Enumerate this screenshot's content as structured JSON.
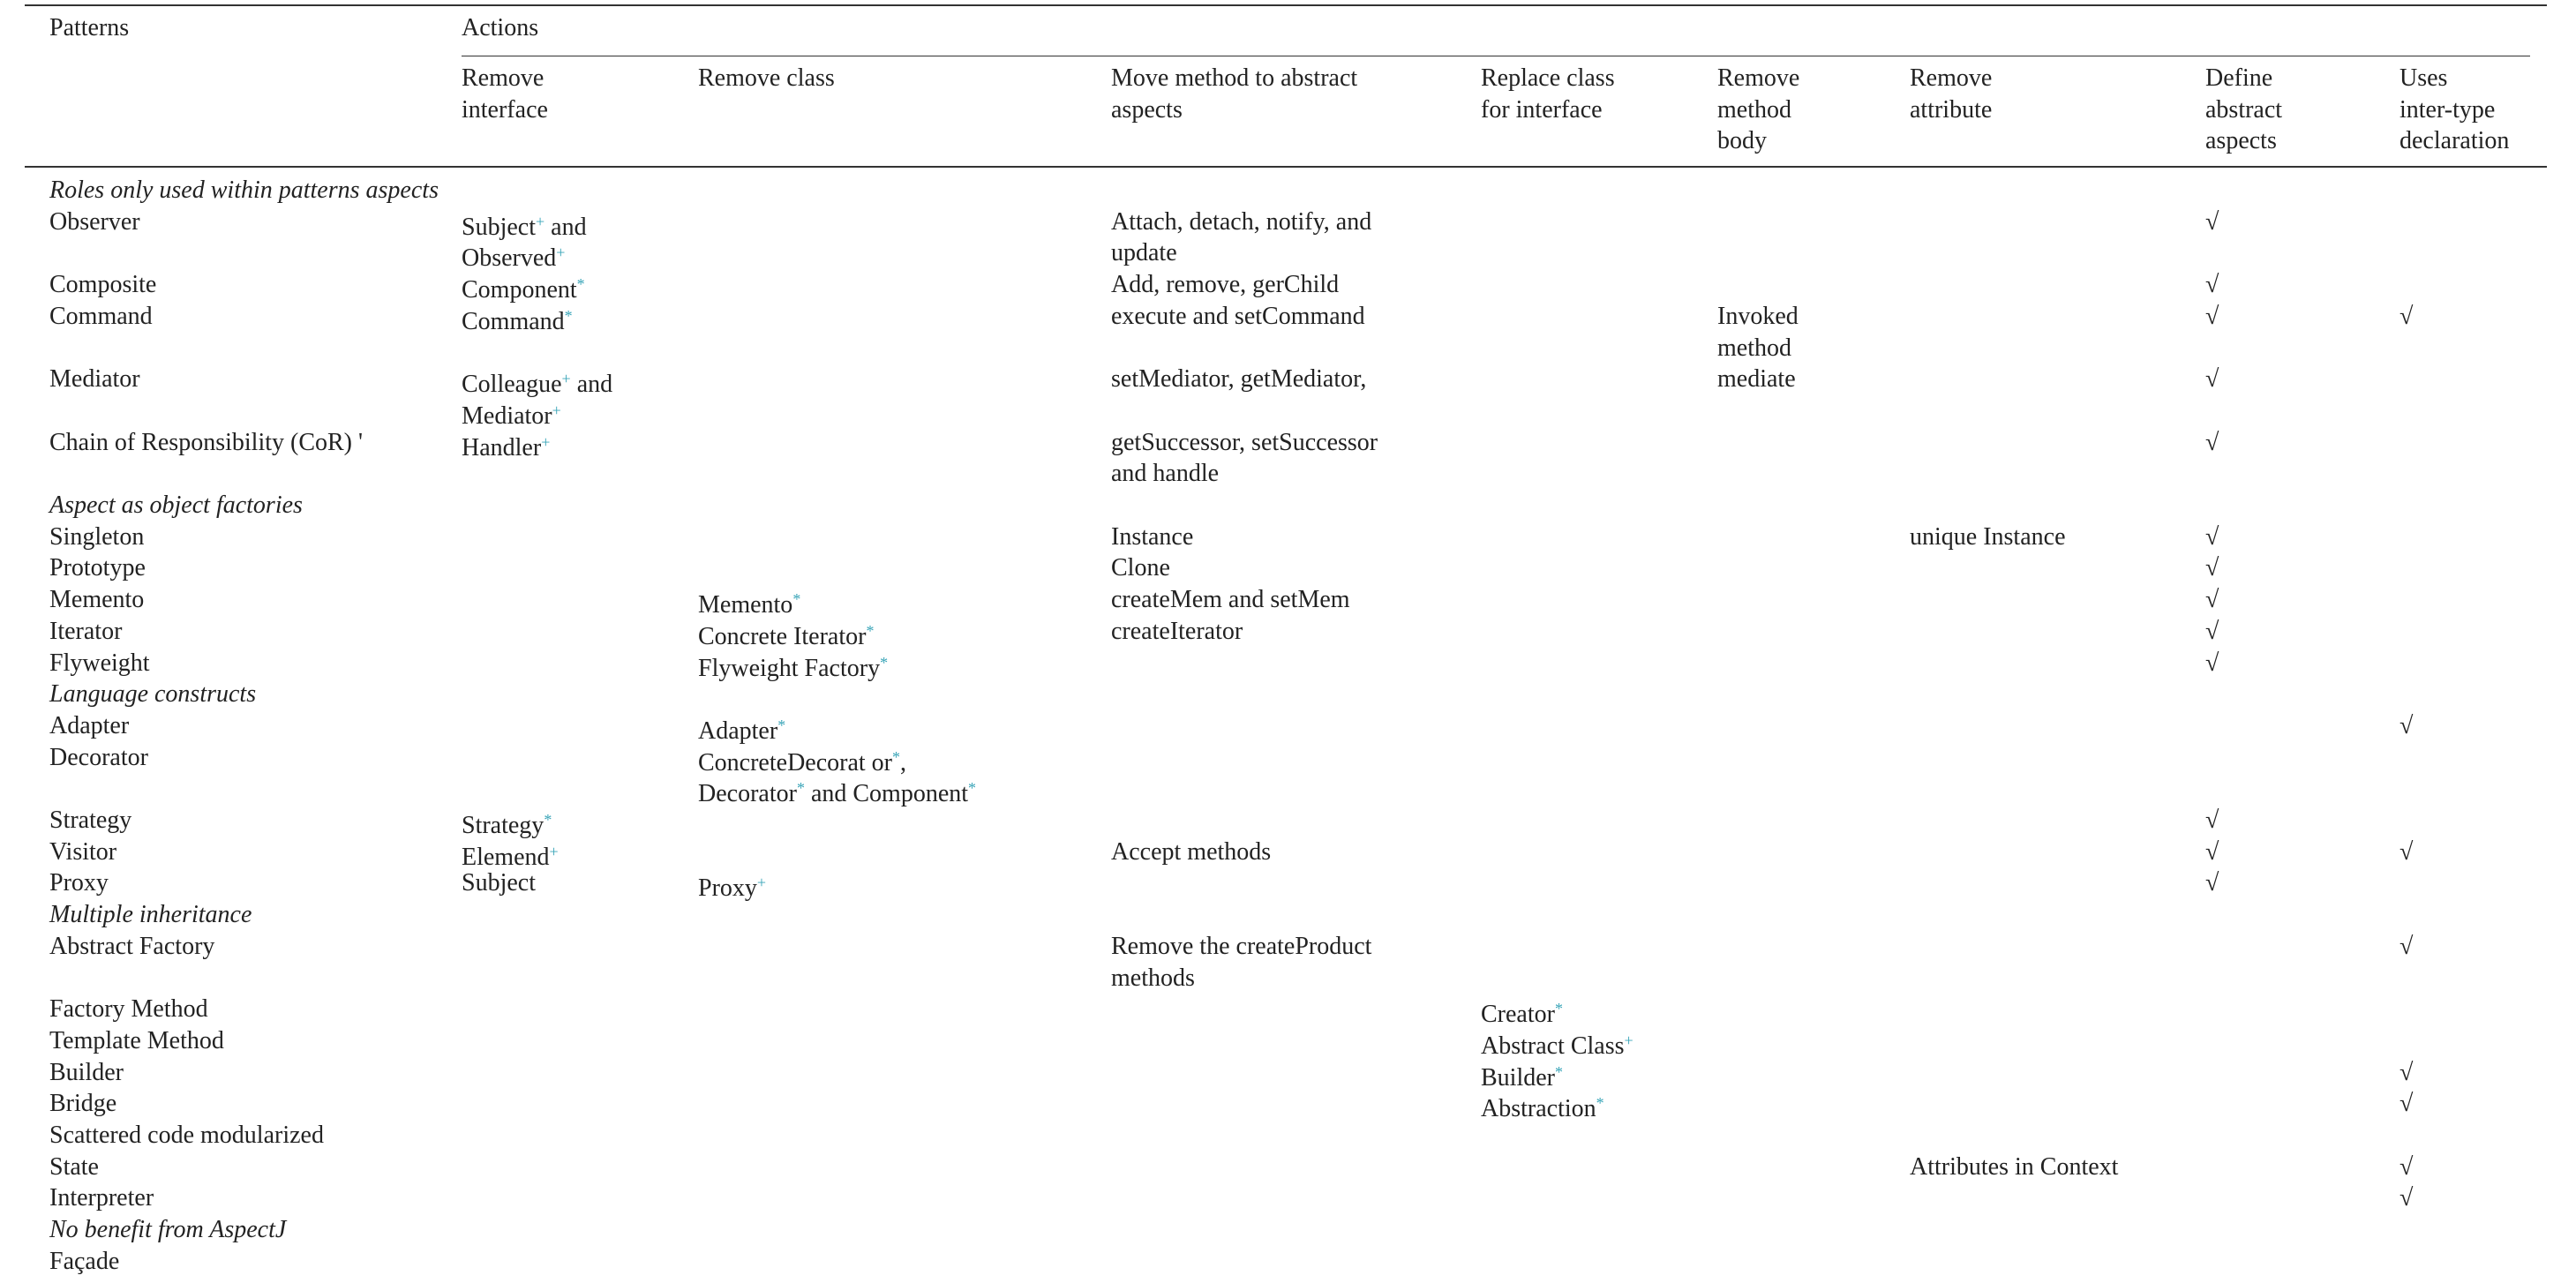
{
  "header": {
    "patterns": "Patterns",
    "actions": "Actions",
    "columns": [
      {
        "key": "remove_interface",
        "lines": [
          "Remove",
          "interface"
        ]
      },
      {
        "key": "remove_class",
        "lines": [
          "Remove class"
        ]
      },
      {
        "key": "move_method",
        "lines": [
          "Move method to abstract",
          "aspects"
        ]
      },
      {
        "key": "replace_class",
        "lines": [
          "Replace class",
          "for interface"
        ]
      },
      {
        "key": "remove_method_body",
        "lines": [
          "Remove",
          "method",
          "body"
        ]
      },
      {
        "key": "remove_attribute",
        "lines": [
          "Remove",
          "attribute"
        ]
      },
      {
        "key": "define_abstract",
        "lines": [
          "Define",
          "abstract",
          "aspects"
        ]
      },
      {
        "key": "inter_type",
        "lines": [
          "Uses",
          "inter-type",
          "declaration"
        ]
      }
    ]
  },
  "table": {
    "rows": [
      {
        "group": "Roles only used within patterns aspects"
      },
      {
        "pattern": "Observer",
        "cells": {
          "remove_interface": [
            [
              "Subject",
              {
                "sup": "+"
              },
              " and"
            ],
            [
              "Observed",
              {
                "sup": "+"
              }
            ]
          ],
          "move_method": [
            [
              "Attach, detach, notify, and"
            ],
            [
              "update"
            ]
          ],
          "define_abstract": [
            [
              "√"
            ]
          ]
        }
      },
      {
        "pattern": "Composite",
        "cells": {
          "remove_interface": [
            [
              "Component",
              {
                "sup": "*"
              }
            ]
          ],
          "move_method": [
            [
              "Add, remove, gerChild"
            ]
          ],
          "define_abstract": [
            [
              "√"
            ]
          ]
        }
      },
      {
        "pattern": "Command",
        "cells": {
          "remove_interface": [
            [
              "Command",
              {
                "sup": "*"
              }
            ]
          ],
          "move_method": [
            [
              "execute and setCommand"
            ]
          ],
          "remove_method_body": [
            [
              "Invoked"
            ],
            [
              "method"
            ]
          ],
          "define_abstract": [
            [
              "√"
            ]
          ],
          "inter_type": [
            [
              "√"
            ]
          ]
        }
      },
      {
        "pattern": "Mediator",
        "cells": {
          "remove_interface": [
            [
              "Colleague",
              {
                "sup": "+"
              },
              " and"
            ],
            [
              "Mediator",
              {
                "sup": "+"
              }
            ]
          ],
          "move_method": [
            [
              "setMediator, getMediator,"
            ]
          ],
          "remove_method_body": [
            [
              "mediate"
            ]
          ],
          "define_abstract": [
            [
              "√"
            ]
          ]
        }
      },
      {
        "pattern": "Chain of Responsibility (CoR) '",
        "cells": {
          "remove_interface": [
            [
              "Handler",
              {
                "sup": "+"
              }
            ]
          ],
          "move_method": [
            [
              "getSuccessor, setSuccessor"
            ],
            [
              "and handle"
            ]
          ],
          "define_abstract": [
            [
              "√"
            ]
          ]
        }
      },
      {
        "group": "Aspect as object factories"
      },
      {
        "pattern": "Singleton",
        "cells": {
          "move_method": [
            [
              "Instance"
            ]
          ],
          "remove_attribute": [
            [
              "unique Instance"
            ]
          ],
          "define_abstract": [
            [
              "√"
            ]
          ]
        }
      },
      {
        "pattern": "Prototype",
        "cells": {
          "move_method": [
            [
              "Clone"
            ]
          ],
          "define_abstract": [
            [
              "√"
            ]
          ]
        }
      },
      {
        "pattern": "Memento",
        "cells": {
          "remove_class": [
            [
              "Memento",
              {
                "sup": "*"
              }
            ]
          ],
          "move_method": [
            [
              "createMem and setMem"
            ]
          ],
          "define_abstract": [
            [
              "√"
            ]
          ]
        }
      },
      {
        "pattern": "Iterator",
        "cells": {
          "remove_class": [
            [
              "Concrete Iterator",
              {
                "sup": "*"
              }
            ]
          ],
          "move_method": [
            [
              "createIterator"
            ]
          ],
          "define_abstract": [
            [
              "√"
            ]
          ]
        }
      },
      {
        "pattern": "Flyweight",
        "cells": {
          "remove_class": [
            [
              "Flyweight Factory",
              {
                "sup": "*"
              }
            ]
          ],
          "define_abstract": [
            [
              "√"
            ]
          ]
        }
      },
      {
        "group": "Language constructs"
      },
      {
        "pattern": "Adapter",
        "cells": {
          "remove_class": [
            [
              "Adapter",
              {
                "sup": "*"
              }
            ]
          ],
          "inter_type": [
            [
              "√"
            ]
          ]
        }
      },
      {
        "pattern": "Decorator",
        "cells": {
          "remove_class": [
            [
              "ConcreteDecorat or",
              {
                "sup": "*"
              },
              ","
            ],
            [
              "Decorator",
              {
                "sup": "*"
              },
              " and Component",
              {
                "sup": "*"
              }
            ]
          ]
        }
      },
      {
        "pattern": "Strategy",
        "cells": {
          "remove_interface": [
            [
              "Strategy",
              {
                "sup": "*"
              }
            ]
          ],
          "define_abstract": [
            [
              "√"
            ]
          ]
        }
      },
      {
        "pattern": "Visitor",
        "cells": {
          "remove_interface": [
            [
              "Elemend",
              {
                "sup": "+"
              }
            ]
          ],
          "move_method": [
            [
              "Accept methods"
            ]
          ],
          "define_abstract": [
            [
              "√"
            ]
          ],
          "inter_type": [
            [
              "√"
            ]
          ]
        }
      },
      {
        "pattern": "Proxy",
        "cells": {
          "remove_interface": [
            [
              "Subject"
            ]
          ],
          "remove_class": [
            [
              "Proxy",
              {
                "sup": "+"
              }
            ]
          ],
          "define_abstract": [
            [
              "√"
            ]
          ]
        }
      },
      {
        "group": "Multiple inheritance"
      },
      {
        "pattern": "Abstract Factory",
        "cells": {
          "move_method": [
            [
              "Remove the createProduct"
            ],
            [
              "methods"
            ]
          ],
          "inter_type": [
            [
              "√"
            ]
          ]
        }
      },
      {
        "pattern": "Factory Method",
        "cells": {
          "replace_class": [
            [
              "Creator",
              {
                "sup": "*"
              }
            ]
          ]
        }
      },
      {
        "pattern": "Template Method",
        "cells": {
          "replace_class": [
            [
              "Abstract Class",
              {
                "sup": "+"
              }
            ]
          ]
        }
      },
      {
        "pattern": "Builder",
        "cells": {
          "replace_class": [
            [
              "Builder",
              {
                "sup": "*"
              }
            ]
          ],
          "inter_type": [
            [
              "√"
            ]
          ]
        }
      },
      {
        "pattern": "Bridge",
        "cells": {
          "replace_class": [
            [
              "Abstraction",
              {
                "sup": "*"
              }
            ]
          ],
          "inter_type": [
            [
              "√"
            ]
          ]
        }
      },
      {
        "pattern": "Scattered code modularized"
      },
      {
        "pattern": "State",
        "cells": {
          "remove_attribute": [
            [
              "Attributes in Context"
            ]
          ],
          "inter_type": [
            [
              "√"
            ]
          ]
        }
      },
      {
        "pattern": "Interpreter",
        "cells": {
          "inter_type": [
            [
              "√"
            ]
          ]
        }
      },
      {
        "group": "No benefit from AspectJ"
      },
      {
        "pattern": "Façade"
      }
    ]
  }
}
